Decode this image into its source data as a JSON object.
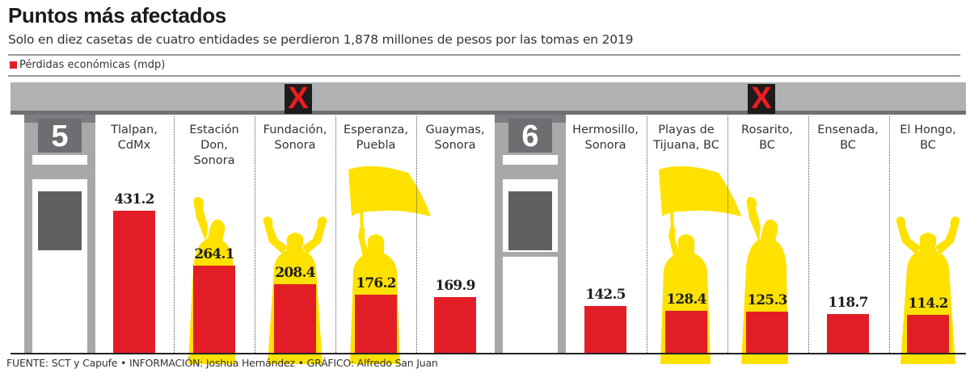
{
  "header": {
    "title": "Puntos más afectados",
    "subtitle": "Solo en diez casetas de cuatro entidades se perdieron 1,878 millones de pesos por las tomas en 2019"
  },
  "legend": {
    "label": "Pérdidas económicas (mdp)",
    "color": "#e31d26"
  },
  "booths": [
    {
      "number": "5"
    },
    {
      "number": "6"
    }
  ],
  "footer": {
    "source": "FUENTE: SCT y Capufe • INFORMACIÓN: Joshua Hernández • GRÁFICO: Alfredo San Juan"
  },
  "colors": {
    "bar": "#e31d26",
    "silhouette": "#ffe100",
    "roof": "#b0b1b3"
  },
  "chart_data": {
    "type": "bar",
    "title": "Puntos más afectados",
    "subtitle": "Solo en diez casetas de cuatro entidades se perdieron 1,878 millones de pesos por las tomas en 2019",
    "xlabel": "",
    "ylabel": "Pérdidas económicas (mdp)",
    "ylim": [
      0,
      431.2
    ],
    "grid": false,
    "legend_position": "top-left",
    "categories": [
      "Tlalpan, CdMx",
      "Estación Don, Sonora",
      "Fundación, Sonora",
      "Esperanza, Puebla",
      "Guaymas, Sonora",
      "Hermosillo, Sonora",
      "Playas de Tijuana, BC",
      "Rosarito, BC",
      "Ensenada, BC",
      "El Hongo, BC"
    ],
    "label_lines": [
      [
        "Tlalpan,",
        "CdMx"
      ],
      [
        "Estación",
        "Don,",
        "Sonora"
      ],
      [
        "Fundación,",
        "Sonora"
      ],
      [
        "Esperanza,",
        "Puebla"
      ],
      [
        "Guaymas,",
        "Sonora"
      ],
      [
        "Hermosillo,",
        "Sonora"
      ],
      [
        "Playas de",
        "Tijuana, BC"
      ],
      [
        "Rosarito,",
        "BC"
      ],
      [
        "Ensenada,",
        "BC"
      ],
      [
        "El Hongo,",
        "BC"
      ]
    ],
    "values": [
      431.2,
      264.1,
      208.4,
      176.2,
      169.9,
      142.5,
      128.4,
      125.3,
      118.7,
      114.2
    ],
    "value_labels": [
      "431.2",
      "264.1",
      "208.4",
      "176.2",
      "169.9",
      "142.5",
      "128.4",
      "125.3",
      "118.7",
      "114.2"
    ],
    "figures": [
      "none",
      "fist",
      "arms-up",
      "flag",
      "none",
      "none",
      "flag",
      "fist",
      "none",
      "arms-up"
    ],
    "series": [
      {
        "name": "Pérdidas económicas (mdp)",
        "values": [
          431.2,
          264.1,
          208.4,
          176.2,
          169.9,
          142.5,
          128.4,
          125.3,
          118.7,
          114.2
        ]
      }
    ]
  }
}
